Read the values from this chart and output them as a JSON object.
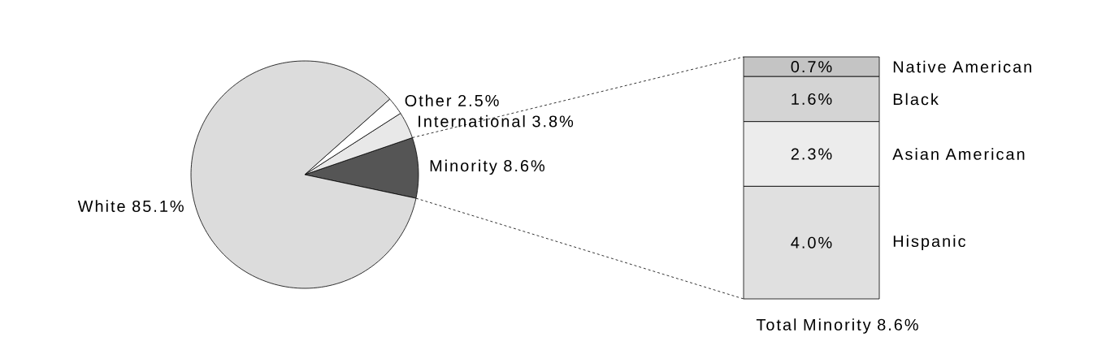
{
  "chart_data": [
    {
      "type": "pie",
      "categories": [
        "Minority",
        "International",
        "Other",
        "White"
      ],
      "values": [
        8.6,
        3.8,
        2.5,
        85.1
      ],
      "value_labels": [
        "8.6%",
        "3.8%",
        "2.5%",
        "85.1%"
      ],
      "colors": [
        "#555555",
        "#e8e8e8",
        "#ffffff",
        "#dcdcdc"
      ]
    },
    {
      "type": "bar",
      "stacked": true,
      "categories": [
        null
      ],
      "xlabel": "Total Minority 8.6%",
      "series": [
        {
          "name": "Hispanic",
          "color": "#e0e0e0",
          "values": [
            4.0
          ],
          "value_labels": [
            "4.0%"
          ]
        },
        {
          "name": "Asian American",
          "color": "#ececec",
          "values": [
            2.3
          ],
          "value_labels": [
            "2.3%"
          ]
        },
        {
          "name": "Black",
          "color": "#d4d4d4",
          "values": [
            1.6
          ],
          "value_labels": [
            "1.6%"
          ]
        },
        {
          "name": "Native American",
          "color": "#c4c4c4",
          "values": [
            0.7
          ],
          "value_labels": [
            "0.7%"
          ]
        }
      ]
    }
  ]
}
